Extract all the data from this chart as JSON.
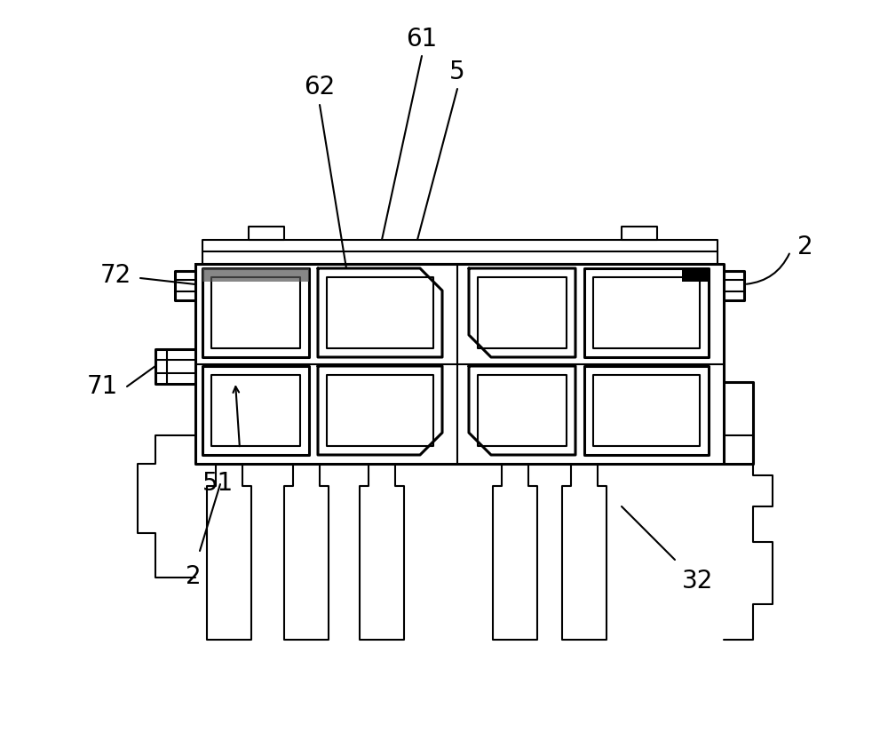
{
  "bg_color": "#ffffff",
  "line_color": "#000000",
  "lw_thin": 1.5,
  "lw_thick": 2.2,
  "font_size": 20
}
